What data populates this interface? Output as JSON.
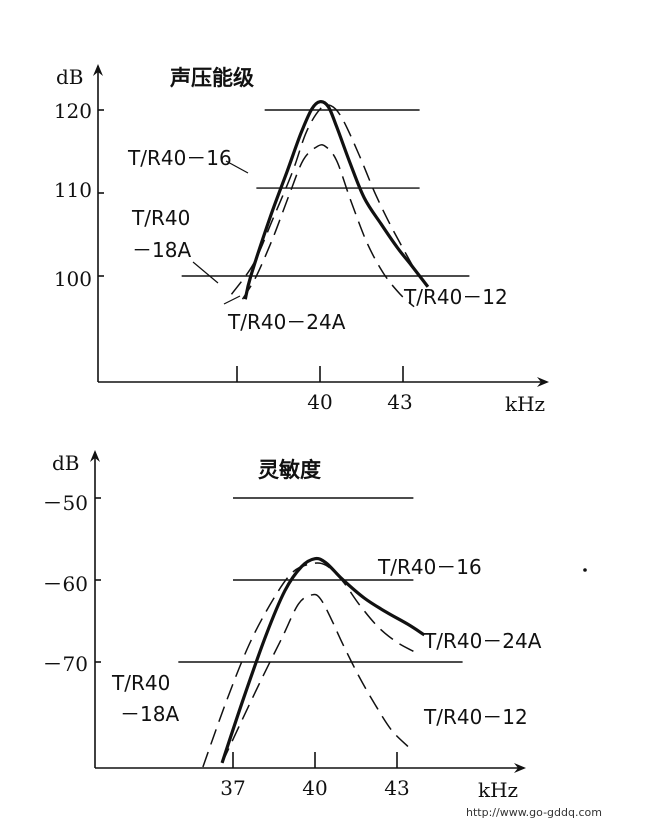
{
  "watermark": "http://www.go-gddq.com",
  "chart_data": [
    {
      "type": "line",
      "title": "声压能级",
      "ylabel": "dB",
      "xlabel": "kHz",
      "ylim": [
        86,
        123
      ],
      "xlim": [
        35,
        45
      ],
      "yticks": [
        {
          "label": "120",
          "value": 120
        },
        {
          "label": "110",
          "value": 110
        },
        {
          "label": "100",
          "value": 100
        }
      ],
      "xticks": [
        {
          "label": "",
          "value": 37
        },
        {
          "label": "40",
          "value": 40
        },
        {
          "label": "43",
          "value": 43
        }
      ],
      "gridlines": [
        {
          "value": 120,
          "from": 38.0,
          "to": 43.6
        },
        {
          "value": 110.6,
          "from": 37.7,
          "to": 43.6
        },
        {
          "value": 100,
          "from": 35.0,
          "to": 45.4
        }
      ],
      "series": [
        {
          "name": "T/R40－16",
          "style": "solid-thick",
          "x": [
            37.3,
            37.5,
            38.2,
            38.8,
            39.3,
            39.7,
            40.0,
            40.3,
            40.6,
            41.1,
            41.6,
            42.2,
            42.8,
            43.3,
            43.9
          ],
          "y": [
            97.2,
            100.0,
            107.1,
            112.5,
            117.1,
            120.1,
            121.0,
            120.4,
            118.0,
            113.5,
            109.4,
            106.3,
            103.4,
            101.3,
            98.7
          ]
        },
        {
          "name": "T/R40－18A",
          "style": "dashed",
          "x": [
            36.8,
            37.6,
            38.3,
            39.0,
            39.5,
            40.0,
            40.4,
            40.8,
            41.4,
            42.0,
            42.6,
            43.4
          ],
          "y": [
            97.8,
            101.5,
            106.9,
            112.5,
            117.3,
            120.1,
            120.5,
            119.0,
            114.7,
            109.9,
            105.8,
            100.9
          ]
        },
        {
          "name": "T/R40－24A",
          "style": "dashed",
          "x": [
            37.2,
            37.7,
            38.3,
            38.9,
            39.4,
            39.9,
            40.2,
            40.6,
            41.1,
            41.7,
            42.3,
            42.9,
            43.4
          ],
          "y": [
            97.2,
            100.0,
            104.6,
            109.9,
            114.0,
            115.6,
            115.6,
            113.9,
            109.2,
            104.0,
            100.3,
            97.8,
            96.3
          ]
        }
      ],
      "labels": [
        {
          "text": "T/R40－16",
          "for": "T/R40－16"
        },
        {
          "text": "T/R40",
          "for": "T/R40－18A"
        },
        {
          "text": "－18A",
          "for": "T/R40－18A"
        },
        {
          "text": "T/R40－24A",
          "for": "T/R40－24A"
        },
        {
          "text": "T/R40－12",
          "for": "T/R40－12"
        }
      ]
    },
    {
      "type": "line",
      "title": "灵敏度",
      "ylabel": "dB",
      "xlabel": "kHz",
      "ylim": [
        -83.5,
        -46
      ],
      "xlim": [
        35,
        45
      ],
      "yticks": [
        {
          "label": "－50",
          "value": -50
        },
        {
          "label": "－60",
          "value": -60
        },
        {
          "label": "－70",
          "value": -70
        }
      ],
      "xticks": [
        {
          "label": "37",
          "value": 37
        },
        {
          "label": "40",
          "value": 40
        },
        {
          "label": "43",
          "value": 43
        }
      ],
      "gridlines": [
        {
          "value": -50,
          "from": 37.0,
          "to": 43.6
        },
        {
          "value": -60,
          "from": 37.0,
          "to": 43.6
        },
        {
          "value": -70,
          "from": 35.0,
          "to": 45.4
        }
      ],
      "series": [
        {
          "name": "T/R40－16",
          "style": "solid-thick",
          "x": [
            36.6,
            37.4,
            38.2,
            38.9,
            39.5,
            40.0,
            40.4,
            41.0,
            41.8,
            42.6,
            43.4,
            44.0
          ],
          "y": [
            -82.3,
            -74.3,
            -66.8,
            -61.3,
            -58.4,
            -57.4,
            -57.9,
            -59.9,
            -62.2,
            -63.9,
            -65.4,
            -66.7
          ]
        },
        {
          "name": "T/R40－18A",
          "style": "dashed",
          "x": [
            35.9,
            36.7,
            37.6,
            38.5,
            39.2,
            39.9,
            40.4,
            41.0,
            41.6,
            42.3,
            43.0,
            43.6
          ],
          "y": [
            -82.8,
            -75.3,
            -67.8,
            -62.2,
            -59.0,
            -58.0,
            -58.2,
            -60.1,
            -62.9,
            -65.7,
            -67.6,
            -68.7
          ]
        },
        {
          "name": "T/R40－12",
          "style": "dashed",
          "x": [
            36.6,
            37.3,
            38.1,
            38.8,
            39.4,
            39.9,
            40.2,
            40.6,
            41.0,
            41.6,
            42.2,
            42.8,
            43.4
          ],
          "y": [
            -82.3,
            -77.3,
            -71.7,
            -67.0,
            -62.9,
            -61.8,
            -62.3,
            -64.8,
            -67.7,
            -71.7,
            -75.2,
            -78.3,
            -80.3
          ]
        }
      ],
      "labels": [
        {
          "text": "T/R40－16",
          "for": "T/R40－16"
        },
        {
          "text": "T/R40－24A",
          "for": "T/R40－24A"
        },
        {
          "text": "T/R40",
          "for": "T/R40－18A"
        },
        {
          "text": "－18A",
          "for": "T/R40－18A"
        },
        {
          "text": "T/R40－12",
          "for": "T/R40－12"
        }
      ]
    }
  ]
}
